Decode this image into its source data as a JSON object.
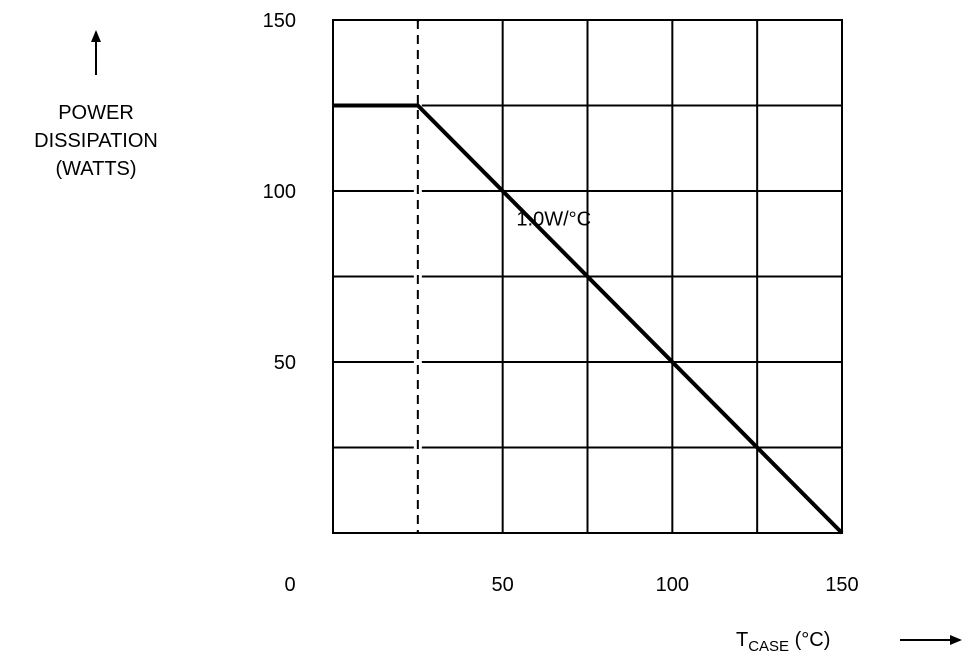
{
  "chart_data": {
    "type": "line",
    "ylabel": [
      "POWER",
      "DISSIPATION",
      "(WATTS)"
    ],
    "xlabel": {
      "main": "T",
      "sub": "CASE",
      "unit": " (°C)"
    },
    "xlim": [
      0,
      150
    ],
    "ylim": [
      0,
      150
    ],
    "x_ticks": [
      0,
      50,
      100,
      150
    ],
    "y_ticks": [
      50,
      100,
      150
    ],
    "grid": true,
    "grid_step": 25,
    "series": [
      {
        "x": [
          0,
          25,
          150
        ],
        "y": [
          125,
          125,
          0
        ]
      }
    ],
    "reference_lines": [
      {
        "orientation": "vertical",
        "x": 25,
        "style": "dashed"
      }
    ],
    "annotations": [
      {
        "text": "1.0W/°C",
        "x": 57,
        "y": 92
      }
    ]
  }
}
